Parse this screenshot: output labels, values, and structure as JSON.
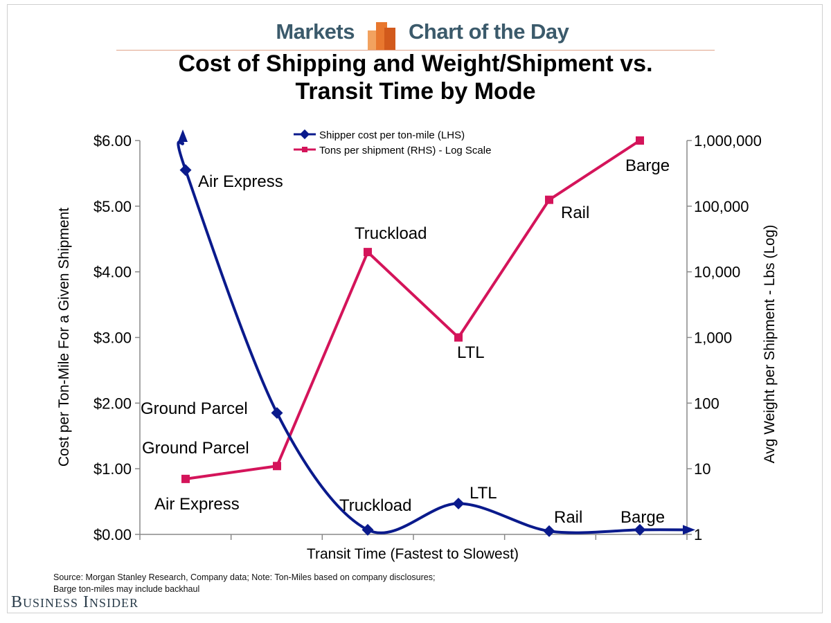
{
  "header": {
    "section_left": "Markets",
    "section_right": "Chart of the Day",
    "logo_icon": "bar-stack-logo",
    "accent_color": "#e8772e"
  },
  "chart_data": {
    "type": "line",
    "title": "Cost of Shipping and Weight/Shipment vs. Transit Time by Mode",
    "title_lines": [
      "Cost of Shipping and Weight/Shipment vs.",
      "Transit Time by Mode"
    ],
    "xlabel": "Transit Time (Fastest to Slowest)",
    "ylabel_left": "Cost per Ton-Mile For a Given Shipment",
    "ylabel_right": "Avg Weight per Shipment - Lbs (Log)",
    "ylim_left": [
      0,
      6
    ],
    "ylim_right": [
      1,
      1000000
    ],
    "right_scale": "log",
    "left_ticks": [
      "$0.00",
      "$1.00",
      "$2.00",
      "$3.00",
      "$4.00",
      "$5.00",
      "$6.00"
    ],
    "right_ticks": [
      "1",
      "10",
      "100",
      "1,000",
      "10,000",
      "100,000",
      "1,000,000"
    ],
    "legend": [
      "Shipper cost per ton-mile (LHS)",
      "Tons per shipment (RHS) - Log Scale"
    ],
    "legend_position": "top-center",
    "categories": [
      "Air Express",
      "Ground Parcel",
      "Truckload",
      "LTL",
      "Rail",
      "Barge"
    ],
    "series": [
      {
        "name": "Shipper cost per ton-mile (LHS)",
        "axis": "left",
        "color": "#0a1a8c",
        "values": [
          5.55,
          1.85,
          0.07,
          0.47,
          0.05,
          0.07
        ],
        "labels": [
          "Air Express",
          "Ground Parcel",
          "Truckload",
          "LTL",
          "Rail",
          "Barge"
        ]
      },
      {
        "name": "Tons per shipment (RHS) - Log Scale",
        "axis": "right",
        "color": "#d4145a",
        "values": [
          7,
          11,
          20000,
          1000,
          125000,
          1000000
        ],
        "labels": [
          "Air Express",
          "Ground Parcel",
          "Truckload",
          "LTL",
          "Rail",
          "Barge"
        ]
      }
    ]
  },
  "footer": {
    "source": "Source: Morgan Stanley Research, Company data; Note: Ton-Miles based on company disclosures; Barge ton-miles may include backhaul",
    "brand": "Business Insider"
  }
}
